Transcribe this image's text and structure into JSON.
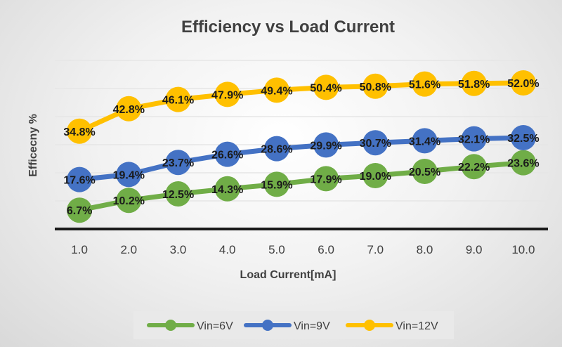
{
  "chart_data": {
    "type": "line",
    "title": "Efficiency vs Load Current",
    "xlabel": "Load Current[mA]",
    "ylabel": "Efficecny %",
    "categories": [
      "1.0",
      "2.0",
      "3.0",
      "4.0",
      "5.0",
      "6.0",
      "7.0",
      "8.0",
      "9.0",
      "10.0"
    ],
    "ylim": [
      0,
      60
    ],
    "grid": true,
    "legend_position": "bottom",
    "series": [
      {
        "name": "Vin=6V",
        "color": "#70ad47",
        "values": [
          6.7,
          10.2,
          12.5,
          14.3,
          15.9,
          17.9,
          19.0,
          20.5,
          22.2,
          23.6
        ],
        "labels": [
          "6.7%",
          "10.2%",
          "12.5%",
          "14.3%",
          "15.9%",
          "17.9%",
          "19.0%",
          "20.5%",
          "22.2%",
          "23.6%"
        ]
      },
      {
        "name": "Vin=9V",
        "color": "#4472c4",
        "values": [
          17.6,
          19.4,
          23.7,
          26.6,
          28.6,
          29.9,
          30.7,
          31.4,
          32.1,
          32.5
        ],
        "labels": [
          "17.6%",
          "19.4%",
          "23.7%",
          "26.6%",
          "28.6%",
          "29.9%",
          "30.7%",
          "31.4%",
          "32.1%",
          "32.5%"
        ]
      },
      {
        "name": "Vin=12V",
        "color": "#ffc000",
        "values": [
          34.8,
          42.8,
          46.1,
          47.9,
          49.4,
          50.4,
          50.8,
          51.6,
          51.8,
          52.0
        ],
        "labels": [
          "34.8%",
          "42.8%",
          "46.1%",
          "47.9%",
          "49.4%",
          "50.4%",
          "50.8%",
          "51.6%",
          "51.8%",
          "52.0%"
        ]
      }
    ]
  }
}
